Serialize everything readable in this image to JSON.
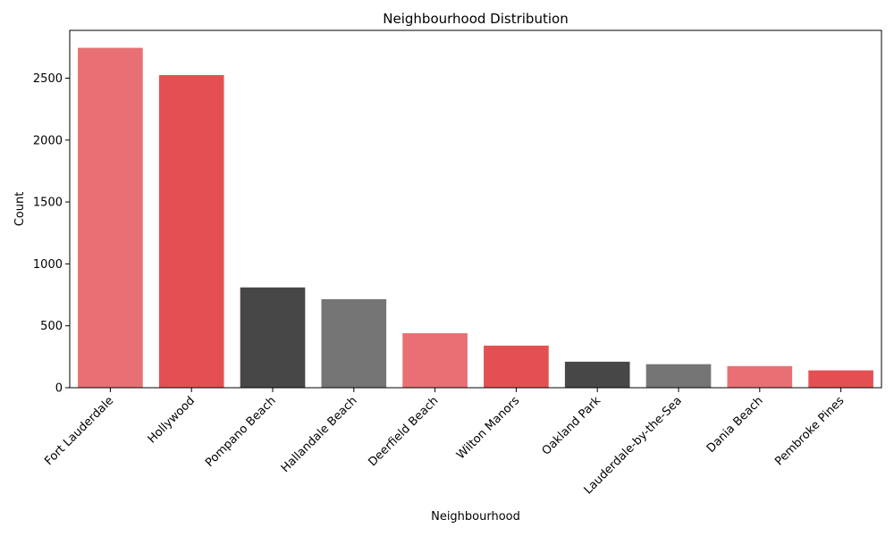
{
  "chart_data": {
    "type": "bar",
    "title": "Neighbourhood Distribution",
    "xlabel": "Neighbourhood",
    "ylabel": "Count",
    "categories": [
      "Fort Lauderdale",
      "Hollywood",
      "Pompano Beach",
      "Hallandale Beach",
      "Deerfield Beach",
      "Wilton Manors",
      "Oakland Park",
      "Lauderdale-by-the-Sea",
      "Dania Beach",
      "Pembroke Pines"
    ],
    "values": [
      2745,
      2525,
      810,
      715,
      440,
      340,
      210,
      190,
      175,
      140
    ],
    "colors": [
      "#e87074",
      "#e45052",
      "#474747",
      "#757575",
      "#e87074",
      "#e45052",
      "#474747",
      "#757575",
      "#e87074",
      "#e45052"
    ],
    "ylim": [
      0,
      2886
    ],
    "yticks": [
      0,
      500,
      1000,
      1500,
      2000,
      2500
    ],
    "grid": false,
    "legend": "none"
  }
}
